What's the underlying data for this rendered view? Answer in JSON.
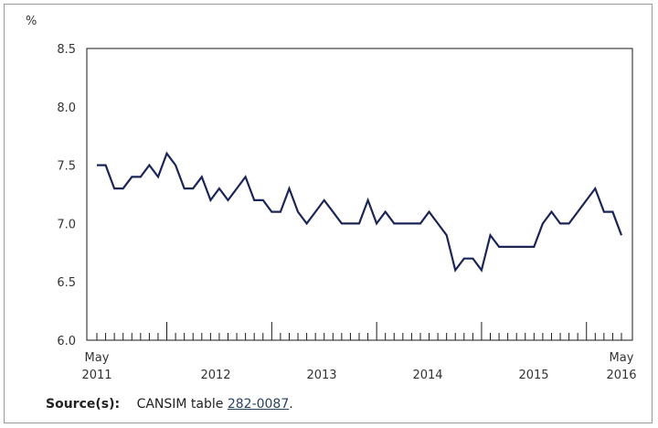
{
  "chart_data": {
    "type": "line",
    "ylabel": "%",
    "ylim": [
      6.0,
      8.5
    ],
    "yticks": [
      "8.5",
      "8.0",
      "7.5",
      "7.0",
      "6.5",
      "6.0"
    ],
    "xlabels": [
      {
        "top": "May",
        "bottom": "2011"
      },
      {
        "top": "",
        "bottom": "2012"
      },
      {
        "top": "",
        "bottom": "2013"
      },
      {
        "top": "",
        "bottom": "2014"
      },
      {
        "top": "",
        "bottom": "2015"
      },
      {
        "top": "May",
        "bottom": "2016"
      }
    ],
    "x_start": "2011-05",
    "x_end": "2016-05",
    "grid": false,
    "series": [
      {
        "color": "#1b2556",
        "values": [
          7.5,
          7.5,
          7.3,
          7.3,
          7.4,
          7.4,
          7.5,
          7.4,
          7.6,
          7.5,
          7.3,
          7.3,
          7.4,
          7.2,
          7.3,
          7.2,
          7.3,
          7.4,
          7.2,
          7.2,
          7.1,
          7.1,
          7.3,
          7.1,
          7.0,
          7.1,
          7.2,
          7.1,
          7.0,
          7.0,
          7.0,
          7.2,
          7.0,
          7.1,
          7.0,
          7.0,
          7.0,
          7.0,
          7.1,
          7.0,
          6.9,
          6.6,
          6.7,
          6.7,
          6.6,
          6.9,
          6.8,
          6.8,
          6.8,
          6.8,
          6.8,
          7.0,
          7.1,
          7.0,
          7.0,
          7.1,
          7.2,
          7.3,
          7.1,
          7.1,
          6.9
        ]
      }
    ]
  },
  "source": {
    "label": "Source(s):",
    "text": "CANSIM table",
    "link": "282-0087",
    "end": "."
  }
}
